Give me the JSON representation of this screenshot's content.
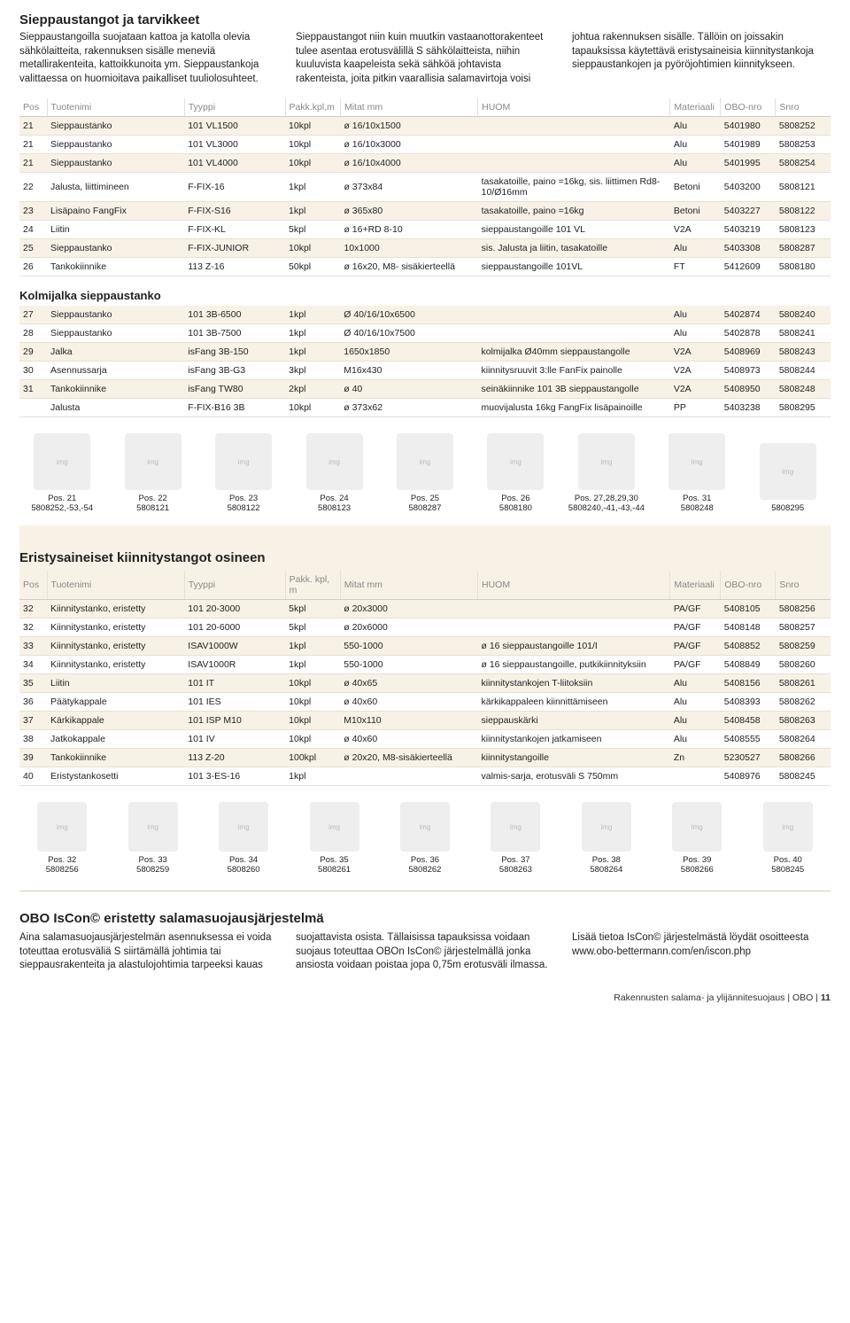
{
  "title_main": "Sieppaustangot ja tarvikkeet",
  "intro_main": "Sieppaustangoilla suojataan kattoa ja katolla olevia sähkölaitteita, rakennuksen sisälle meneviä metallirakenteita, kattoikkunoita ym. Sieppaustankoja valittaessa on huomioitava paikalliset tuuliolosuhteet. Sieppaustangot niin kuin muutkin vastaanottorakenteet tulee asentaa erotusvälillä S sähkölaitteista, niihin kuuluvista kaapeleista sekä sähköä johtavista rakenteista, joita pitkin vaarallisia salamavirtoja voisi johtua rakennuksen sisälle. Tällöin on joissakin tapauksissa käytettävä eristysaineisia kiinnitystankoja sieppaustankojen ja pyöröjohtimien kiinnitykseen.",
  "table1": {
    "headers": [
      "Pos",
      "Tuotenimi",
      "Tyyppi",
      "Pakk.kpl,m",
      "Mitat mm",
      "HUOM",
      "Materiaali",
      "OBO-nro",
      "Snro"
    ],
    "rows": [
      [
        "21",
        "Sieppaustanko",
        "101 VL1500",
        "10kpl",
        "ø 16/10x1500",
        "",
        "Alu",
        "5401980",
        "5808252"
      ],
      [
        "21",
        "Sieppaustanko",
        "101 VL3000",
        "10kpl",
        "ø 16/10x3000",
        "",
        "Alu",
        "5401989",
        "5808253"
      ],
      [
        "21",
        "Sieppaustanko",
        "101 VL4000",
        "10kpl",
        "ø 16/10x4000",
        "",
        "Alu",
        "5401995",
        "5808254"
      ],
      [
        "22",
        "Jalusta, liittimineen",
        "F-FIX-16",
        "1kpl",
        "ø 373x84",
        "tasakatoille, paino =16kg, sis. liittimen Rd8-10/Ø16mm",
        "Betoni",
        "5403200",
        "5808121"
      ],
      [
        "23",
        "Lisäpaino FangFix",
        "F-FIX-S16",
        "1kpl",
        "ø 365x80",
        "tasakatoille, paino =16kg",
        "Betoni",
        "5403227",
        "5808122"
      ],
      [
        "24",
        "Liitin",
        "F-FIX-KL",
        "5kpl",
        "ø 16+RD 8-10",
        "sieppaustangoille 101 VL",
        "V2A",
        "5403219",
        "5808123"
      ],
      [
        "25",
        "Sieppaustanko",
        "F-FIX-JUNIOR",
        "10kpl",
        "10x1000",
        "sis. Jalusta ja liitin, tasakatoille",
        "Alu",
        "5403308",
        "5808287"
      ],
      [
        "26",
        "Tankokiinnike",
        "113 Z-16",
        "50kpl",
        "ø 16x20, M8- sisäkierteellä",
        "sieppaustangoille 101VL",
        "FT",
        "5412609",
        "5808180"
      ]
    ]
  },
  "sub1": "Kolmijalka sieppaustanko",
  "table2": {
    "rows": [
      [
        "27",
        "Sieppaustanko",
        "101 3B-6500",
        "1kpl",
        "Ø 40/16/10x6500",
        "",
        "Alu",
        "5402874",
        "5808240"
      ],
      [
        "28",
        "Sieppaustanko",
        "101 3B-7500",
        "1kpl",
        "Ø 40/16/10x7500",
        "",
        "Alu",
        "5402878",
        "5808241"
      ],
      [
        "29",
        "Jalka",
        "isFang 3B-150",
        "1kpl",
        "1650x1850",
        "kolmijalka Ø40mm sieppaustangolle",
        "V2A",
        "5408969",
        "5808243"
      ],
      [
        "30",
        "Asennussarja",
        "isFang 3B-G3",
        "3kpl",
        "M16x430",
        "kiinnitysruuvit 3:lle FanFix painolle",
        "V2A",
        "5408973",
        "5808244"
      ],
      [
        "31",
        "Tankokiinnike",
        "isFang TW80",
        "2kpl",
        "ø 40",
        "seinäkiinnike 101 3B sieppaustangolle",
        "V2A",
        "5408950",
        "5808248"
      ],
      [
        "",
        "Jalusta",
        "F-FIX-B16 3B",
        "10kpl",
        "ø 373x62",
        "muovijalusta 16kg FangFix lisäpainoille",
        "PP",
        "5403238",
        "5808295"
      ]
    ]
  },
  "thumbs1": [
    {
      "label": "Pos. 21",
      "sub": "5808252,-53,-54"
    },
    {
      "label": "Pos. 22",
      "sub": "5808121"
    },
    {
      "label": "Pos. 23",
      "sub": "5808122"
    },
    {
      "label": "Pos. 24",
      "sub": "5808123"
    },
    {
      "label": "Pos. 25",
      "sub": "5808287"
    },
    {
      "label": "Pos. 26",
      "sub": "5808180"
    },
    {
      "label": "Pos. 27,28,29,30",
      "sub": "5808240,-41,-43,-44"
    },
    {
      "label": "Pos. 31",
      "sub": "5808248"
    },
    {
      "label": "",
      "sub": "5808295"
    }
  ],
  "title2": "Eristysaineiset kiinnitystangot osineen",
  "table3": {
    "headers": [
      "Pos",
      "Tuotenimi",
      "Tyyppi",
      "Pakk. kpl, m",
      "Mitat mm",
      "HUOM",
      "Materiaali",
      "OBO-nro",
      "Snro"
    ],
    "rows": [
      [
        "32",
        "Kiinnitystanko, eristetty",
        "101 20-3000",
        "5kpl",
        "ø 20x3000",
        "",
        "PA/GF",
        "5408105",
        "5808256"
      ],
      [
        "32",
        "Kiinnitystanko, eristetty",
        "101 20-6000",
        "5kpl",
        "ø 20x6000",
        "",
        "PA/GF",
        "5408148",
        "5808257"
      ],
      [
        "33",
        "Kiinnitystanko, eristetty",
        "ISAV1000W",
        "1kpl",
        "550-1000",
        "ø 16 sieppaustangoille 101/I",
        "PA/GF",
        "5408852",
        "5808259"
      ],
      [
        "34",
        "Kiinnitystanko, eristetty",
        "ISAV1000R",
        "1kpl",
        "550-1000",
        "ø 16 sieppaustangoille, putkikiinnityksiin",
        "PA/GF",
        "5408849",
        "5808260"
      ],
      [
        "35",
        "Liitin",
        "101 IT",
        "10kpl",
        "ø 40x65",
        "kiinnitystankojen T-liitoksiin",
        "Alu",
        "5408156",
        "5808261"
      ],
      [
        "36",
        "Päätykappale",
        "101 IES",
        "10kpl",
        "ø 40x60",
        "kärkikappaleen kiinnittämiseen",
        "Alu",
        "5408393",
        "5808262"
      ],
      [
        "37",
        "Kärkikappale",
        "101 ISP M10",
        "10kpl",
        "M10x110",
        "sieppauskärki",
        "Alu",
        "5408458",
        "5808263"
      ],
      [
        "38",
        "Jatkokappale",
        "101 IV",
        "10kpl",
        "ø 40x60",
        "kiinnitystankojen jatkamiseen",
        "Alu",
        "5408555",
        "5808264"
      ],
      [
        "39",
        "Tankokiinnike",
        "113 Z-20",
        "100kpl",
        "ø 20x20, M8-sisäkierteellä",
        "kiinnitystangoille",
        "Zn",
        "5230527",
        "5808266"
      ],
      [
        "40",
        "Eristystankosetti",
        "101 3-ES-16",
        "1kpl",
        "",
        "valmis-sarja, erotusväli S 750mm",
        "",
        "5408976",
        "5808245"
      ]
    ]
  },
  "thumbs2": [
    {
      "label": "Pos. 32",
      "sub": "5808256"
    },
    {
      "label": "Pos. 33",
      "sub": "5808259"
    },
    {
      "label": "Pos. 34",
      "sub": "5808260"
    },
    {
      "label": "Pos. 35",
      "sub": "5808261"
    },
    {
      "label": "Pos. 36",
      "sub": "5808262"
    },
    {
      "label": "Pos. 37",
      "sub": "5808263"
    },
    {
      "label": "Pos. 38",
      "sub": "5808264"
    },
    {
      "label": "Pos. 39",
      "sub": "5808266"
    },
    {
      "label": "Pos. 40",
      "sub": "5808245"
    }
  ],
  "title3": "OBO IsCon© eristetty salamasuojausjärjestelmä",
  "intro3": "Aina salamasuojausjärjestelmän asennuksessa ei voida toteuttaa erotusväliä S siirtämällä johtimia tai sieppausrakenteita ja alastulojohtimia tarpeeksi kauas suojattavista osista. Tällaisissa tapauksissa voidaan suojaus toteuttaa OBOn IsCon© järjestelmällä jonka ansiosta voidaan poistaa jopa 0,75m erotusväli ilmassa. Lisää tietoa IsCon© järjestelmästä löydät osoitteesta www.obo-bettermann.com/en/iscon.php",
  "footer": {
    "text": "Rakennusten salama- ja ylijännitesuojaus | OBO | ",
    "page": "11"
  }
}
